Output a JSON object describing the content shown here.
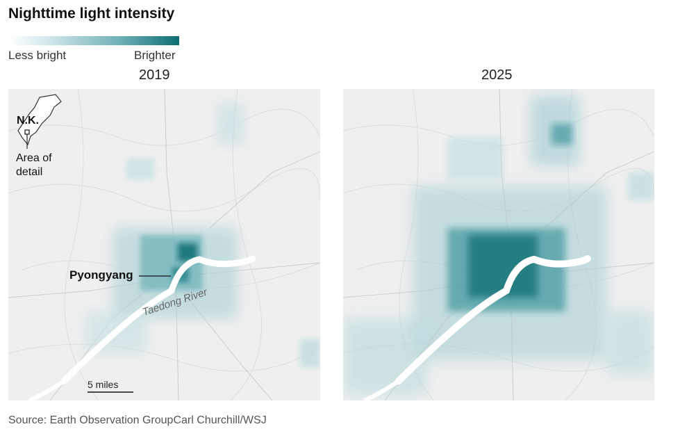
{
  "title": "Nighttime light intensity",
  "legend": {
    "low_label": "Less bright",
    "high_label": "Brighter",
    "color_low": "#ffffff",
    "color_high": "#0b6e72"
  },
  "panels": [
    {
      "year": "2019"
    },
    {
      "year": "2025"
    }
  ],
  "labels": {
    "country": "N.K.",
    "area_of_detail": "Area of detail",
    "city": "Pyongyang",
    "river": "Taedong River",
    "scale": "5 miles"
  },
  "colors": {
    "river": "#ffffff",
    "terrain": "#eeeeee",
    "light_mid": "#5aa9b0",
    "light_dark": "#0b6e72"
  },
  "source": "Source: Earth Observation GroupCarl Churchill/WSJ"
}
